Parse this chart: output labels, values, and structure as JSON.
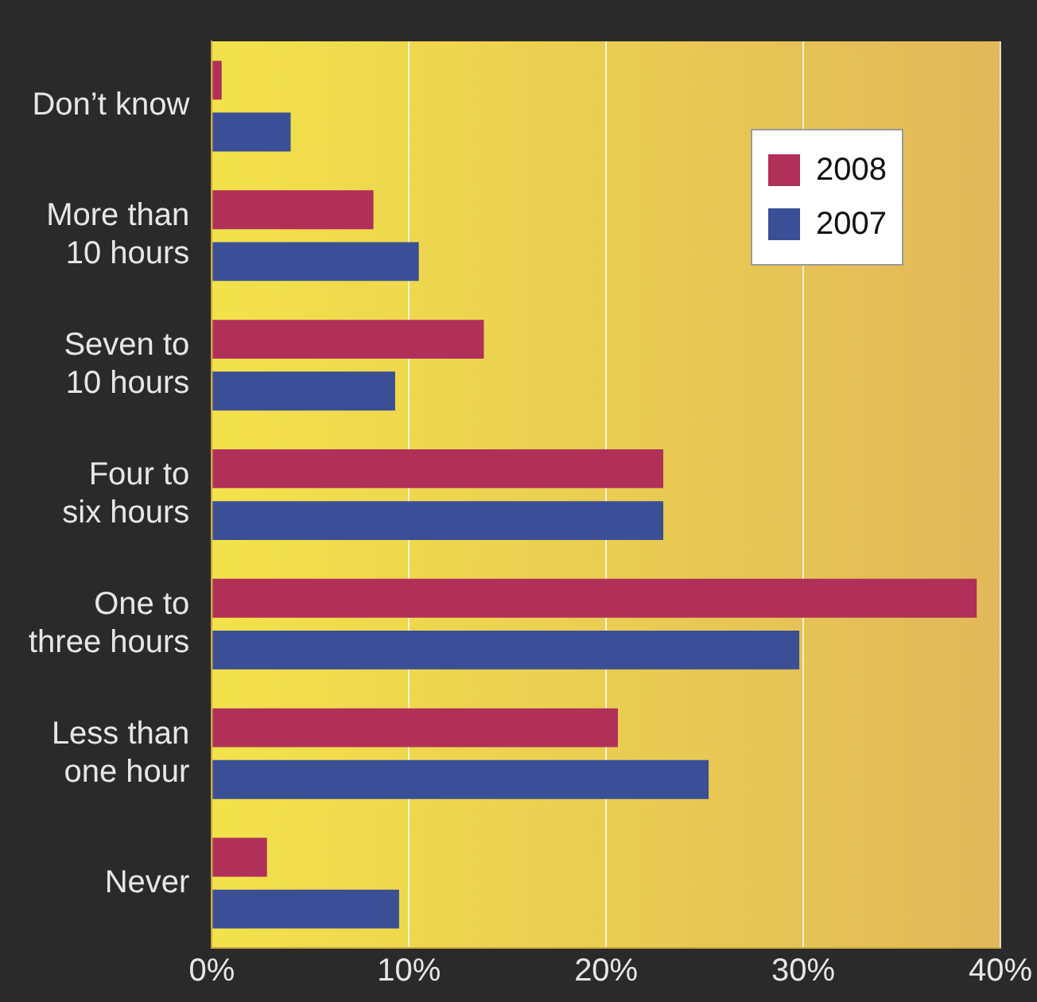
{
  "chart_data": {
    "type": "bar",
    "orientation": "horizontal",
    "categories": [
      "Don’t know",
      "More than 10 hours",
      "Seven to 10 hours",
      "Four to six hours",
      "One to three hours",
      "Less than one hour",
      "Never"
    ],
    "series": [
      {
        "name": "2008",
        "color": "#b0305a",
        "values": [
          0.5,
          8.2,
          13.8,
          22.9,
          38.8,
          20.6,
          2.8
        ]
      },
      {
        "name": "2007",
        "color": "#3a4f95",
        "values": [
          4,
          10.5,
          9.3,
          22.9,
          29.8,
          25.2,
          9.5
        ]
      }
    ],
    "xlim": [
      0,
      40
    ],
    "xticks": [
      {
        "value": 0,
        "label": "0%"
      },
      {
        "value": 10,
        "label": "10%"
      },
      {
        "value": 20,
        "label": "20%"
      },
      {
        "value": 30,
        "label": "30%"
      },
      {
        "value": 40,
        "label": "40%"
      }
    ],
    "grid": "x",
    "legend": "top right"
  }
}
